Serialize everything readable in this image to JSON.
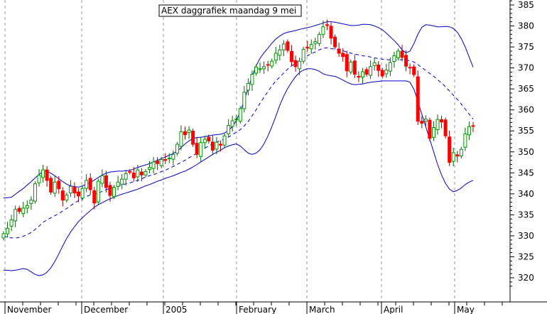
{
  "chart_data": {
    "type": "candlestick",
    "title": "AEX daggrafiek maandag 9 mei",
    "ylim": [
      313,
      387
    ],
    "y_ticks": [
      320,
      325,
      330,
      335,
      340,
      345,
      350,
      355,
      360,
      365,
      370,
      375,
      380,
      385
    ],
    "x_labels": [
      "November",
      "December",
      "2005",
      "February",
      "March",
      "April",
      "May"
    ],
    "grid": {
      "vertical": true,
      "horizontal": false,
      "style": "dashed"
    },
    "colors": {
      "up_candle": "#009900",
      "down_candle": "#ff0000",
      "bollinger_band": "#0000cc",
      "moving_average": "#0000cc",
      "grid": "#999999",
      "axis": "#000000"
    },
    "series": [
      {
        "kind": "candles",
        "close": [
          330.5,
          331.8,
          333.8,
          336.3,
          335.8,
          336.6,
          337.2,
          338.5,
          342.4,
          344.4,
          345.7,
          343.2,
          340.4,
          342.8,
          341.2,
          338.5,
          339.7,
          341.8,
          340.2,
          339.5,
          341.3,
          343.2,
          341.0,
          337.8,
          343.0,
          344.3,
          341.5,
          339.6,
          341.5,
          342.8,
          343.5,
          344.8,
          345.2,
          343.8,
          345.7,
          344.5,
          345.3,
          346.3,
          347.6,
          347.2,
          348.2,
          348.0,
          348.5,
          349.4,
          351.8,
          354.8,
          354.1,
          355.2,
          351.8,
          349.4,
          352.2,
          353.0,
          352.6,
          350.4,
          352.3,
          351.6,
          353.8,
          356.3,
          357.4,
          357.8,
          360.3,
          364.2,
          366.3,
          368.5,
          370.2,
          369.8,
          370.3,
          370.7,
          371.6,
          373.5,
          374.3,
          375.7,
          374.2,
          371.5,
          370.3,
          371.6,
          374.4,
          374.8,
          375.6,
          376.3,
          378.0,
          379.8,
          380.2,
          377.1,
          375.0,
          373.5,
          372.7,
          369.3,
          371.4,
          368.5,
          367.8,
          369.1,
          368.5,
          370.3,
          371.2,
          369.4,
          368.1,
          369.5,
          371.3,
          372.9,
          374.0,
          372.5,
          370.4,
          370.0,
          368.4,
          357.3,
          356.8,
          357.8,
          353.2,
          355.8,
          357.7,
          357.1,
          353.8,
          347.5,
          349.8,
          349.0,
          350.6,
          354.3,
          356.0,
          356.2
        ],
        "up_color_name": "green",
        "down_color_name": "red"
      },
      {
        "kind": "bollinger_upper",
        "values": [
          339.0,
          339.1,
          339.2,
          339.9,
          340.6,
          341.3,
          342.1,
          342.9,
          343.8,
          344.6,
          345.4,
          345.4,
          344.9,
          344.3,
          343.6,
          342.9,
          342.3,
          341.9,
          341.7,
          341.6,
          341.9,
          342.3,
          342.7,
          343.3,
          343.9,
          344.5,
          344.9,
          345.2,
          345.3,
          345.4,
          345.4,
          345.5,
          345.6,
          345.9,
          346.3,
          346.6,
          346.9,
          347.2,
          347.6,
          348.0,
          348.4,
          348.8,
          349.2,
          349.6,
          350.2,
          351.0,
          351.9,
          352.6,
          353.2,
          353.4,
          353.5,
          353.6,
          353.8,
          354.0,
          354.1,
          354.2,
          354.5,
          355.1,
          356.0,
          357.5,
          359.6,
          362.3,
          365.2,
          368.0,
          370.5,
          372.3,
          373.6,
          374.7,
          375.9,
          376.9,
          377.6,
          378.2,
          378.5,
          378.7,
          378.9,
          379.2,
          379.4,
          379.6,
          379.8,
          380.1,
          380.4,
          380.7,
          381.0,
          381.0,
          380.9,
          380.7,
          380.5,
          380.3,
          380.1,
          380.1,
          380.2,
          380.4,
          380.4,
          380.3,
          380.0,
          379.6,
          379.1,
          378.3,
          377.4,
          376.5,
          375.5,
          374.3,
          373.6,
          374.0,
          375.8,
          378.0,
          379.7,
          380.3,
          380.2,
          380.0,
          379.8,
          379.8,
          379.9,
          379.8,
          379.4,
          378.5,
          377.0,
          375.0,
          372.6,
          370.2
        ],
        "line_style": "solid"
      },
      {
        "kind": "moving_average",
        "values": [
          330.0,
          329.6,
          329.5,
          329.5,
          329.6,
          329.9,
          330.3,
          330.8,
          331.5,
          332.3,
          333.2,
          333.8,
          334.3,
          334.8,
          335.3,
          335.9,
          336.5,
          337.2,
          337.8,
          338.4,
          338.9,
          339.4,
          339.7,
          339.9,
          340.2,
          340.6,
          341.0,
          341.3,
          341.6,
          341.9,
          342.1,
          342.4,
          342.6,
          342.9,
          343.2,
          343.6,
          344.0,
          344.3,
          344.6,
          344.9,
          345.3,
          345.6,
          346.1,
          346.5,
          347.0,
          347.5,
          348.0,
          348.6,
          349.1,
          349.7,
          350.3,
          350.9,
          351.4,
          351.9,
          352.3,
          352.7,
          353.1,
          353.5,
          354.1,
          354.7,
          355.3,
          356.2,
          357.2,
          358.6,
          360.0,
          361.6,
          363.0,
          364.4,
          365.7,
          366.9,
          367.8,
          368.8,
          369.7,
          370.5,
          371.1,
          371.8,
          372.4,
          372.9,
          373.4,
          373.8,
          374.3,
          374.7,
          374.8,
          374.6,
          374.5,
          374.3,
          374.1,
          373.8,
          373.5,
          373.3,
          373.1,
          372.9,
          372.8,
          372.6,
          372.4,
          372.2,
          372.1,
          372.0,
          371.9,
          371.9,
          371.9,
          372.0,
          371.9,
          371.7,
          371.4,
          370.8,
          370.1,
          369.4,
          368.7,
          368.0,
          367.2,
          366.4,
          365.5,
          364.5,
          363.5,
          362.5,
          361.4,
          360.2,
          359.0,
          357.8
        ],
        "line_style": "dashed"
      },
      {
        "kind": "bollinger_lower",
        "values": [
          321.8,
          321.8,
          321.7,
          321.8,
          322.0,
          322.2,
          322.0,
          321.4,
          320.8,
          320.5,
          320.7,
          321.3,
          322.4,
          323.9,
          325.7,
          327.6,
          329.4,
          330.9,
          332.2,
          333.4,
          334.3,
          335.2,
          336.0,
          336.8,
          337.4,
          337.9,
          338.4,
          338.8,
          339.2,
          339.6,
          339.9,
          340.2,
          340.5,
          340.8,
          341.1,
          341.5,
          341.9,
          342.2,
          342.6,
          343.0,
          343.3,
          343.7,
          344.0,
          344.3,
          344.7,
          345.1,
          345.4,
          345.9,
          346.4,
          347.0,
          347.6,
          348.2,
          348.8,
          349.4,
          349.9,
          350.4,
          351.0,
          351.4,
          351.7,
          351.9,
          351.4,
          350.5,
          349.7,
          349.4,
          349.7,
          350.5,
          351.9,
          353.8,
          356.0,
          358.5,
          361.1,
          363.3,
          365.1,
          366.6,
          367.9,
          368.9,
          369.5,
          369.8,
          369.8,
          369.6,
          369.2,
          368.6,
          368.3,
          368.1,
          368.0,
          367.6,
          367.1,
          366.6,
          366.2,
          366.0,
          366.1,
          366.2,
          366.4,
          366.6,
          366.7,
          366.8,
          366.9,
          366.9,
          366.9,
          366.9,
          366.9,
          366.9,
          366.9,
          366.6,
          364.9,
          362.0,
          359.0,
          356.0,
          353.0,
          350.0,
          347.0,
          344.5,
          342.5,
          341.1,
          340.5,
          340.8,
          341.4,
          342.2,
          342.8,
          343.2
        ],
        "line_style": "solid"
      }
    ]
  }
}
